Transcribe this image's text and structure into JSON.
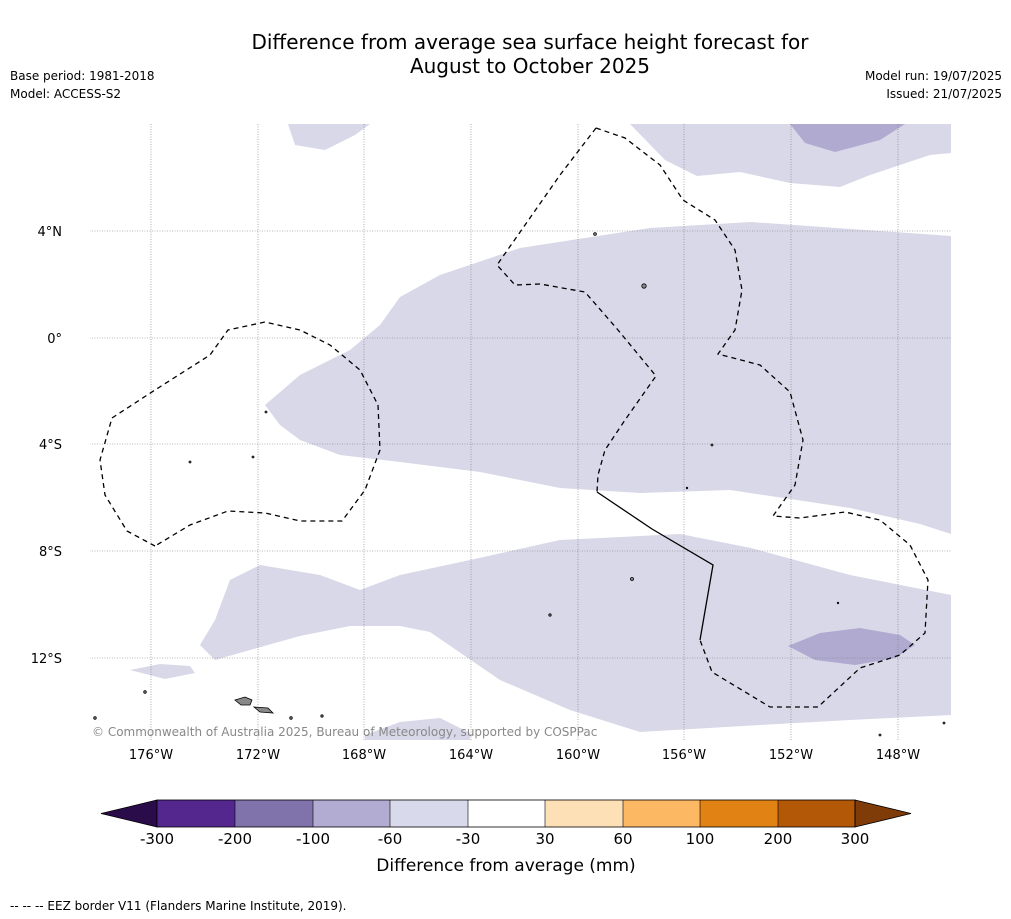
{
  "header": {
    "title_line1": "Difference from average sea surface height forecast for",
    "title_line2": "August to October 2025",
    "base_period": "Base period: 1981-2018",
    "model": "Model: ACCESS-S2",
    "model_run": "Model run: 19/07/2025",
    "issued": "Issued: 21/07/2025"
  },
  "map": {
    "lat_labels": [
      "4°N",
      "0°",
      "4°S",
      "8°S",
      "12°S"
    ],
    "lon_labels": [
      "176°W",
      "172°W",
      "168°W",
      "164°W",
      "160°W",
      "156°W",
      "152°W",
      "148°W"
    ],
    "copyright": "© Commonwealth of Australia 2025, Bureau of Meteorology, supported by COSPPac",
    "colors": {
      "light_lavender": "#d8d8e8",
      "lavender": "#b0aad0",
      "island": "#888888",
      "eez_border": "#000000"
    }
  },
  "colorbar": {
    "title": "Difference from average (mm)",
    "tick_labels": [
      "-300",
      "-200",
      "-100",
      "-60",
      "-30",
      "30",
      "60",
      "100",
      "200",
      "300"
    ],
    "colors": {
      "below_min": "#2b0c4a",
      "c1": "#54278f",
      "c2": "#8073ac",
      "c3": "#b2abd2",
      "c4": "#d8daeb",
      "c5": "#ffffff",
      "c6": "#fee0b6",
      "c7": "#fdb863",
      "c8": "#e08214",
      "c9": "#b35806",
      "above_max": "#7f3b08"
    }
  },
  "footer": {
    "eez_note": "-- -- -- EEZ border V11 (Flanders Marine Institute, 2019)."
  }
}
